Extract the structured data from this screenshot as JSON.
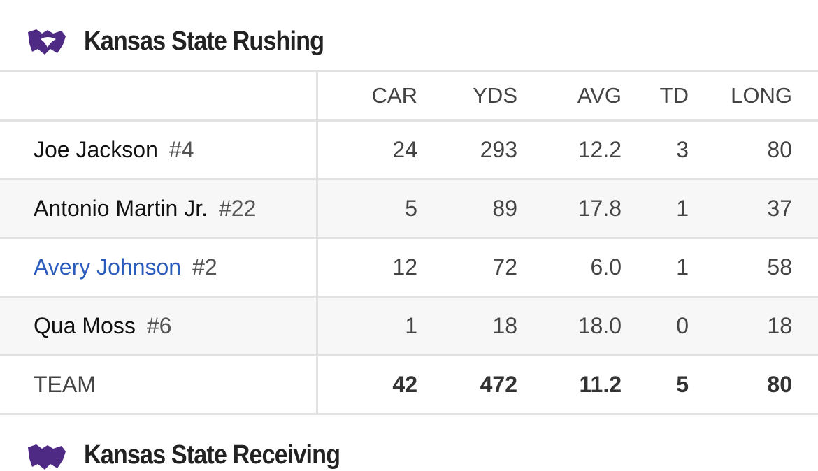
{
  "header": {
    "title": "Kansas State Rushing"
  },
  "table": {
    "columns": [
      "CAR",
      "YDS",
      "AVG",
      "TD",
      "LONG"
    ],
    "rows": [
      {
        "name": "Joe Jackson",
        "number": "#4",
        "stats": [
          "24",
          "293",
          "12.2",
          "3",
          "80"
        ]
      },
      {
        "name": "Antonio Martin Jr.",
        "number": "#22",
        "stats": [
          "5",
          "89",
          "17.8",
          "1",
          "37"
        ]
      },
      {
        "name": "Avery Johnson",
        "number": "#2",
        "stats": [
          "12",
          "72",
          "6.0",
          "1",
          "58"
        ]
      },
      {
        "name": "Qua Moss",
        "number": "#6",
        "stats": [
          "1",
          "18",
          "18.0",
          "0",
          "18"
        ]
      }
    ],
    "total": {
      "label": "TEAM",
      "stats": [
        "42",
        "472",
        "11.2",
        "5",
        "80"
      ]
    }
  },
  "next_header": {
    "title": "Kansas State Receiving"
  }
}
